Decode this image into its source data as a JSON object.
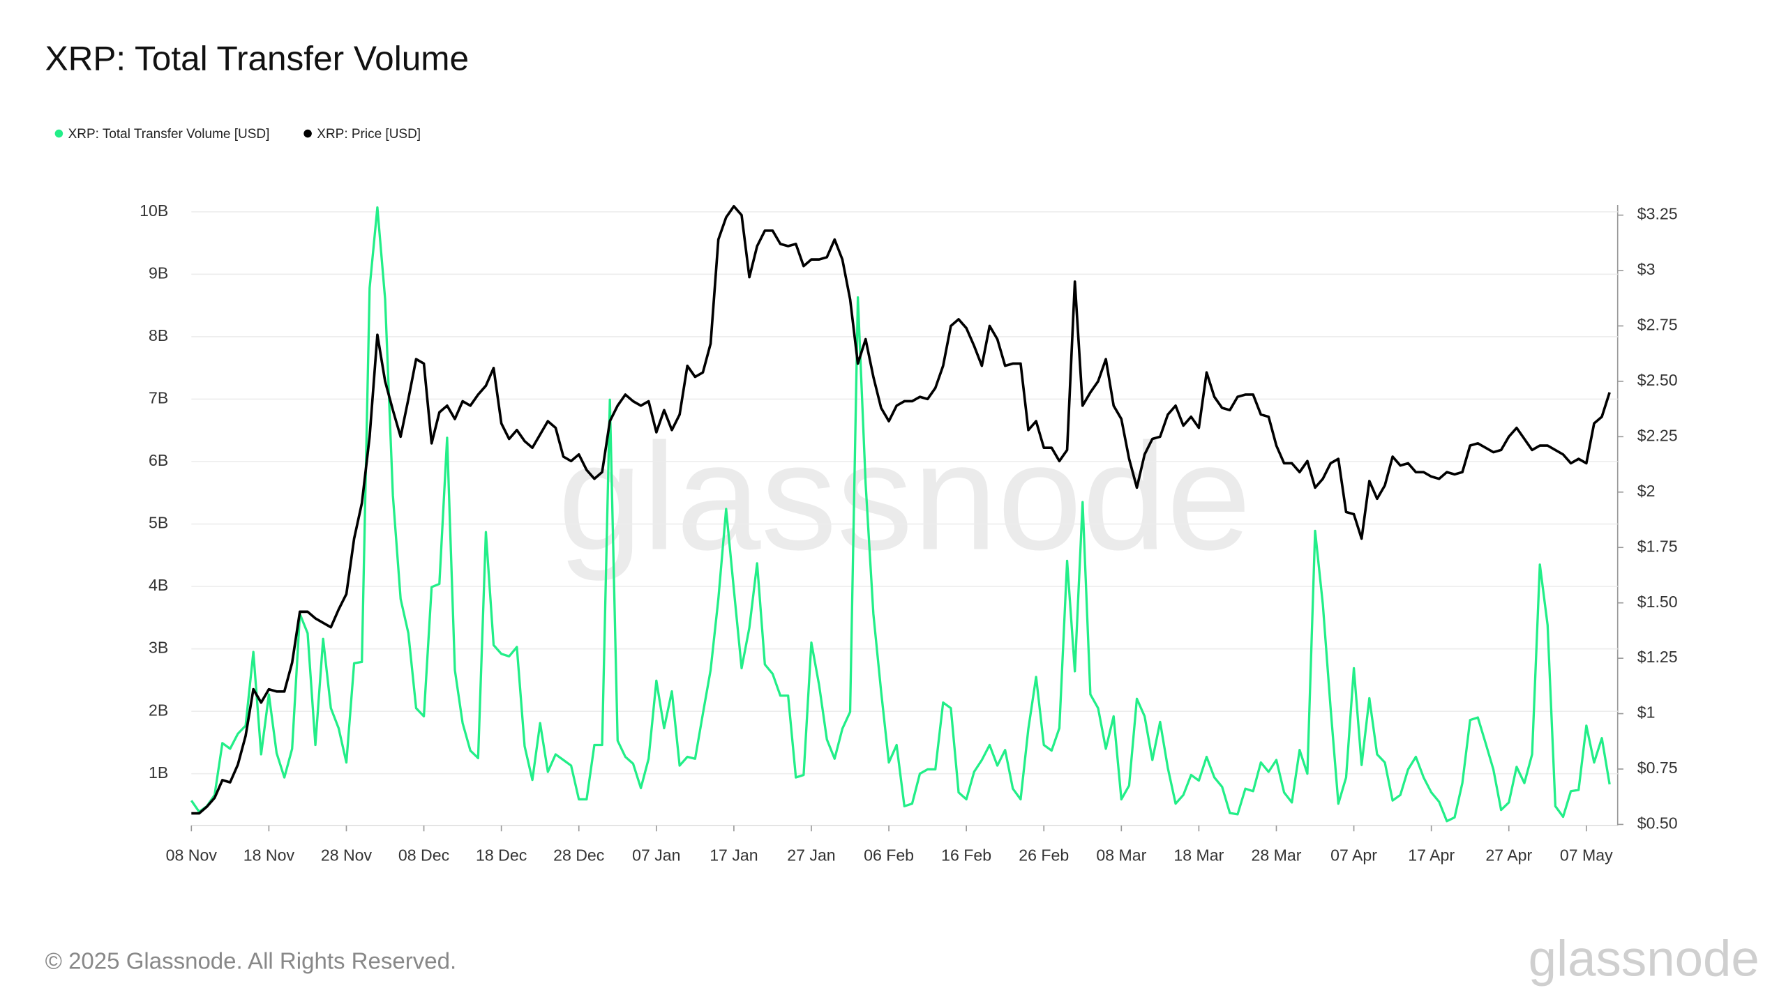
{
  "chart_data": {
    "type": "line",
    "title": "XRP: Total Transfer Volume",
    "copyright": "© 2025 Glassnode. All Rights Reserved.",
    "watermark": "glassnode",
    "logo": "glassnode",
    "grid": true,
    "legend": "top-left",
    "categories": [
      "08 Nov",
      null,
      null,
      null,
      null,
      null,
      null,
      null,
      null,
      null,
      "18 Nov",
      null,
      null,
      null,
      null,
      null,
      null,
      null,
      null,
      null,
      "28 Nov",
      null,
      null,
      null,
      null,
      null,
      null,
      null,
      null,
      null,
      "08 Dec",
      null,
      null,
      null,
      null,
      null,
      null,
      null,
      null,
      null,
      "18 Dec",
      null,
      null,
      null,
      null,
      null,
      null,
      null,
      null,
      null,
      "28 Dec",
      null,
      null,
      null,
      null,
      null,
      null,
      null,
      null,
      null,
      "07 Jan",
      null,
      null,
      null,
      null,
      null,
      null,
      null,
      null,
      null,
      "17 Jan",
      null,
      null,
      null,
      null,
      null,
      null,
      null,
      null,
      null,
      "27 Jan",
      null,
      null,
      null,
      null,
      null,
      null,
      null,
      null,
      null,
      "06 Feb",
      null,
      null,
      null,
      null,
      null,
      null,
      null,
      null,
      null,
      "16 Feb",
      null,
      null,
      null,
      null,
      null,
      null,
      null,
      null,
      null,
      "26 Feb",
      null,
      null,
      null,
      null,
      null,
      null,
      null,
      null,
      null,
      "08 Mar",
      null,
      null,
      null,
      null,
      null,
      null,
      null,
      null,
      null,
      "18 Mar",
      null,
      null,
      null,
      null,
      null,
      null,
      null,
      null,
      null,
      "28 Mar",
      null,
      null,
      null,
      null,
      null,
      null,
      null,
      null,
      null,
      "07 Apr",
      null,
      null,
      null,
      null,
      null,
      null,
      null,
      null,
      null,
      "17 Apr",
      null,
      null,
      null,
      null,
      null,
      null,
      null,
      null,
      null,
      "27 Apr",
      null,
      null,
      null,
      null,
      null,
      null,
      null,
      null,
      null,
      "07 May",
      null,
      null,
      null
    ],
    "ylim": [
      0.17,
      10.11
    ],
    "yticks": [
      {
        "value": 1,
        "label": "1B"
      },
      {
        "value": 2,
        "label": "2B"
      },
      {
        "value": 3,
        "label": "3B"
      },
      {
        "value": 4,
        "label": "4B"
      },
      {
        "value": 5,
        "label": "5B"
      },
      {
        "value": 6,
        "label": "6B"
      },
      {
        "value": 7,
        "label": "7B"
      },
      {
        "value": 8,
        "label": "8B"
      },
      {
        "value": 9,
        "label": "9B"
      },
      {
        "value": 10,
        "label": "10B"
      }
    ],
    "y2lim": [
      0.495,
      3.296
    ],
    "y2ticks": [
      {
        "value": 0.5,
        "label": "$0.50"
      },
      {
        "value": 0.75,
        "label": "$0.75"
      },
      {
        "value": 1,
        "label": "$1"
      },
      {
        "value": 1.25,
        "label": "$1.25"
      },
      {
        "value": 1.5,
        "label": "$1.50"
      },
      {
        "value": 1.75,
        "label": "$1.75"
      },
      {
        "value": 2,
        "label": "$2"
      },
      {
        "value": 2.25,
        "label": "$2.25"
      },
      {
        "value": 2.5,
        "label": "$2.50"
      },
      {
        "value": 2.75,
        "label": "$2.75"
      },
      {
        "value": 3,
        "label": "$3"
      },
      {
        "value": 3.25,
        "label": "$3.25"
      }
    ],
    "series": [
      {
        "name": "XRP: Total Transfer Volume [USD]",
        "color": "#22ee88",
        "axis": "y",
        "values": [
          0.57,
          0.39,
          0.48,
          0.66,
          1.49,
          1.4,
          1.64,
          1.77,
          2.95,
          1.31,
          2.27,
          1.33,
          0.94,
          1.4,
          3.56,
          3.25,
          1.46,
          3.16,
          2.05,
          1.73,
          1.18,
          2.77,
          2.79,
          8.78,
          10.07,
          8.6,
          5.46,
          3.8,
          3.25,
          2.05,
          1.92,
          3.99,
          4.04,
          6.38,
          2.66,
          1.81,
          1.37,
          1.25,
          4.87,
          3.06,
          2.92,
          2.88,
          3.03,
          1.44,
          0.9,
          1.81,
          1.03,
          1.31,
          1.22,
          1.13,
          0.59,
          0.59,
          1.46,
          1.46,
          6.99,
          1.53,
          1.27,
          1.16,
          0.77,
          1.24,
          2.49,
          1.73,
          2.32,
          1.13,
          1.27,
          1.24,
          1.96,
          2.66,
          3.8,
          5.24,
          3.95,
          2.69,
          3.34,
          4.37,
          2.75,
          2.6,
          2.25,
          2.25,
          0.94,
          0.98,
          3.1,
          2.42,
          1.55,
          1.24,
          1.72,
          1.99,
          8.63,
          5.65,
          3.56,
          2.32,
          1.18,
          1.46,
          0.48,
          0.52,
          1.0,
          1.07,
          1.07,
          2.14,
          2.05,
          0.7,
          0.59,
          1.03,
          1.22,
          1.46,
          1.13,
          1.38,
          0.76,
          0.59,
          1.72,
          2.55,
          1.46,
          1.37,
          1.73,
          4.41,
          2.64,
          5.35,
          2.27,
          2.05,
          1.4,
          1.92,
          0.59,
          0.81,
          2.2,
          1.92,
          1.22,
          1.83,
          1.09,
          0.52,
          0.66,
          0.98,
          0.89,
          1.27,
          0.94,
          0.79,
          0.37,
          0.35,
          0.76,
          0.72,
          1.18,
          1.03,
          1.22,
          0.7,
          0.54,
          1.38,
          1.0,
          4.89,
          3.71,
          2.05,
          0.52,
          0.94,
          2.69,
          1.14,
          2.21,
          1.31,
          1.18,
          0.57,
          0.66,
          1.07,
          1.27,
          0.94,
          0.7,
          0.55,
          0.24,
          0.3,
          0.85,
          1.86,
          1.9,
          1.49,
          1.07,
          0.42,
          0.54,
          1.11,
          0.85,
          1.31,
          4.35,
          3.38,
          0.48,
          0.31,
          0.72,
          0.74,
          1.77,
          1.18,
          1.57,
          0.83
        ]
      },
      {
        "name": "XRP: Price [USD]",
        "color": "#000000",
        "axis": "y2",
        "values": [
          0.55,
          0.55,
          0.58,
          0.62,
          0.7,
          0.69,
          0.77,
          0.9,
          1.11,
          1.05,
          1.11,
          1.1,
          1.1,
          1.23,
          1.46,
          1.46,
          1.43,
          1.41,
          1.39,
          1.47,
          1.54,
          1.79,
          1.95,
          2.25,
          2.71,
          2.5,
          2.37,
          2.25,
          2.42,
          2.6,
          2.58,
          2.22,
          2.36,
          2.39,
          2.33,
          2.41,
          2.39,
          2.44,
          2.48,
          2.56,
          2.31,
          2.24,
          2.28,
          2.23,
          2.2,
          2.26,
          2.32,
          2.29,
          2.16,
          2.14,
          2.17,
          2.1,
          2.06,
          2.09,
          2.32,
          2.39,
          2.44,
          2.41,
          2.39,
          2.41,
          2.27,
          2.37,
          2.28,
          2.35,
          2.57,
          2.52,
          2.54,
          2.67,
          3.14,
          3.24,
          3.29,
          3.25,
          2.97,
          3.11,
          3.18,
          3.18,
          3.12,
          3.11,
          3.12,
          3.02,
          3.05,
          3.05,
          3.06,
          3.14,
          3.05,
          2.87,
          2.58,
          2.69,
          2.52,
          2.38,
          2.32,
          2.39,
          2.41,
          2.41,
          2.43,
          2.42,
          2.47,
          2.57,
          2.75,
          2.78,
          2.74,
          2.66,
          2.57,
          2.75,
          2.69,
          2.57,
          2.58,
          2.58,
          2.28,
          2.32,
          2.2,
          2.2,
          2.14,
          2.19,
          2.95,
          2.39,
          2.45,
          2.5,
          2.6,
          2.39,
          2.33,
          2.15,
          2.02,
          2.17,
          2.24,
          2.25,
          2.35,
          2.39,
          2.3,
          2.34,
          2.29,
          2.54,
          2.43,
          2.38,
          2.37,
          2.43,
          2.44,
          2.44,
          2.35,
          2.34,
          2.21,
          2.13,
          2.13,
          2.09,
          2.14,
          2.02,
          2.06,
          2.13,
          2.15,
          1.91,
          1.9,
          1.79,
          2.05,
          1.97,
          2.03,
          2.16,
          2.12,
          2.13,
          2.09,
          2.09,
          2.07,
          2.06,
          2.09,
          2.08,
          2.09,
          2.21,
          2.22,
          2.2,
          2.18,
          2.19,
          2.25,
          2.29,
          2.24,
          2.19,
          2.21,
          2.21,
          2.19,
          2.17,
          2.13,
          2.15,
          2.13,
          2.31,
          2.34,
          2.45
        ]
      }
    ]
  }
}
